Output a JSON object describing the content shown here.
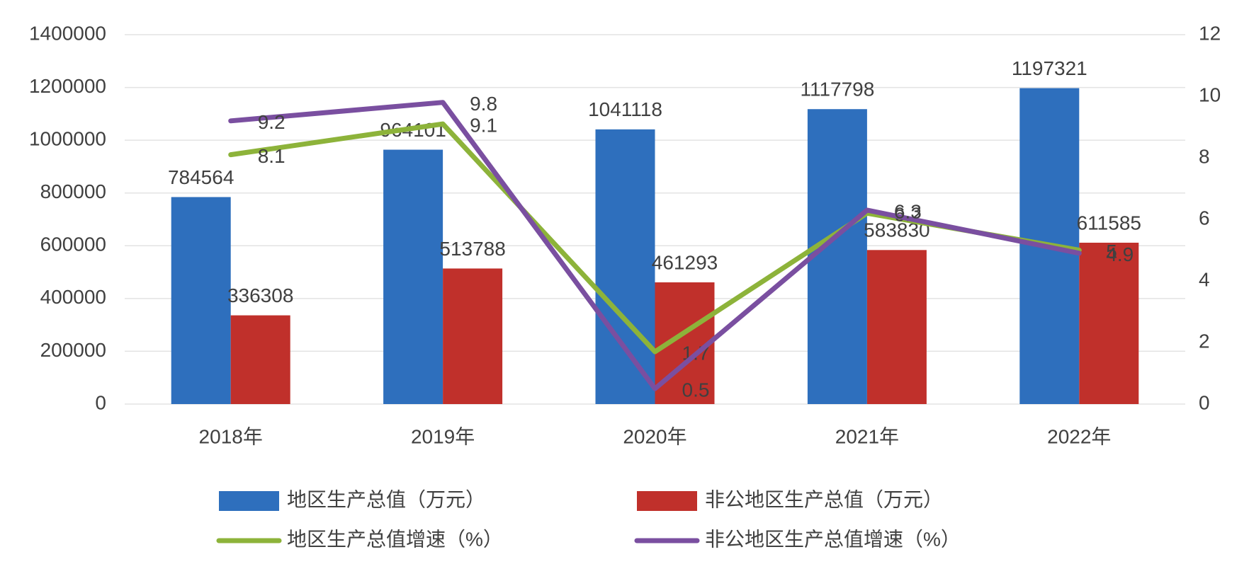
{
  "chart_data": {
    "type": "bar",
    "categories": [
      "2018年",
      "2019年",
      "2020年",
      "2021年",
      "2022年"
    ],
    "series": [
      {
        "name": "地区生产总值（万元）",
        "type": "bar",
        "color": "#2e6fbd",
        "values": [
          784564,
          964101,
          1041118,
          1117798,
          1197321
        ]
      },
      {
        "name": "非公地区生产总值（万元）",
        "type": "bar",
        "color": "#c0302b",
        "values": [
          336308,
          513788,
          461293,
          583830,
          611585
        ]
      },
      {
        "name": "地区生产总值增速（%）",
        "type": "line",
        "axis": "y2",
        "color": "#8db33a",
        "values": [
          8.1,
          9.1,
          1.7,
          6.2,
          5.0
        ]
      },
      {
        "name": "非公地区生产总值增速（%）",
        "type": "line",
        "axis": "y2",
        "color": "#7a4fa0",
        "values": [
          9.2,
          9.8,
          0.5,
          6.3,
          4.9
        ]
      }
    ],
    "ylim": [
      0,
      1400000
    ],
    "yticks": [
      0,
      200000,
      400000,
      600000,
      800000,
      1000000,
      1200000,
      1400000
    ],
    "y2lim": [
      0,
      12
    ],
    "y2ticks": [
      0,
      2,
      4,
      6,
      8,
      10,
      12
    ],
    "grid": true,
    "legend": "bottom"
  }
}
